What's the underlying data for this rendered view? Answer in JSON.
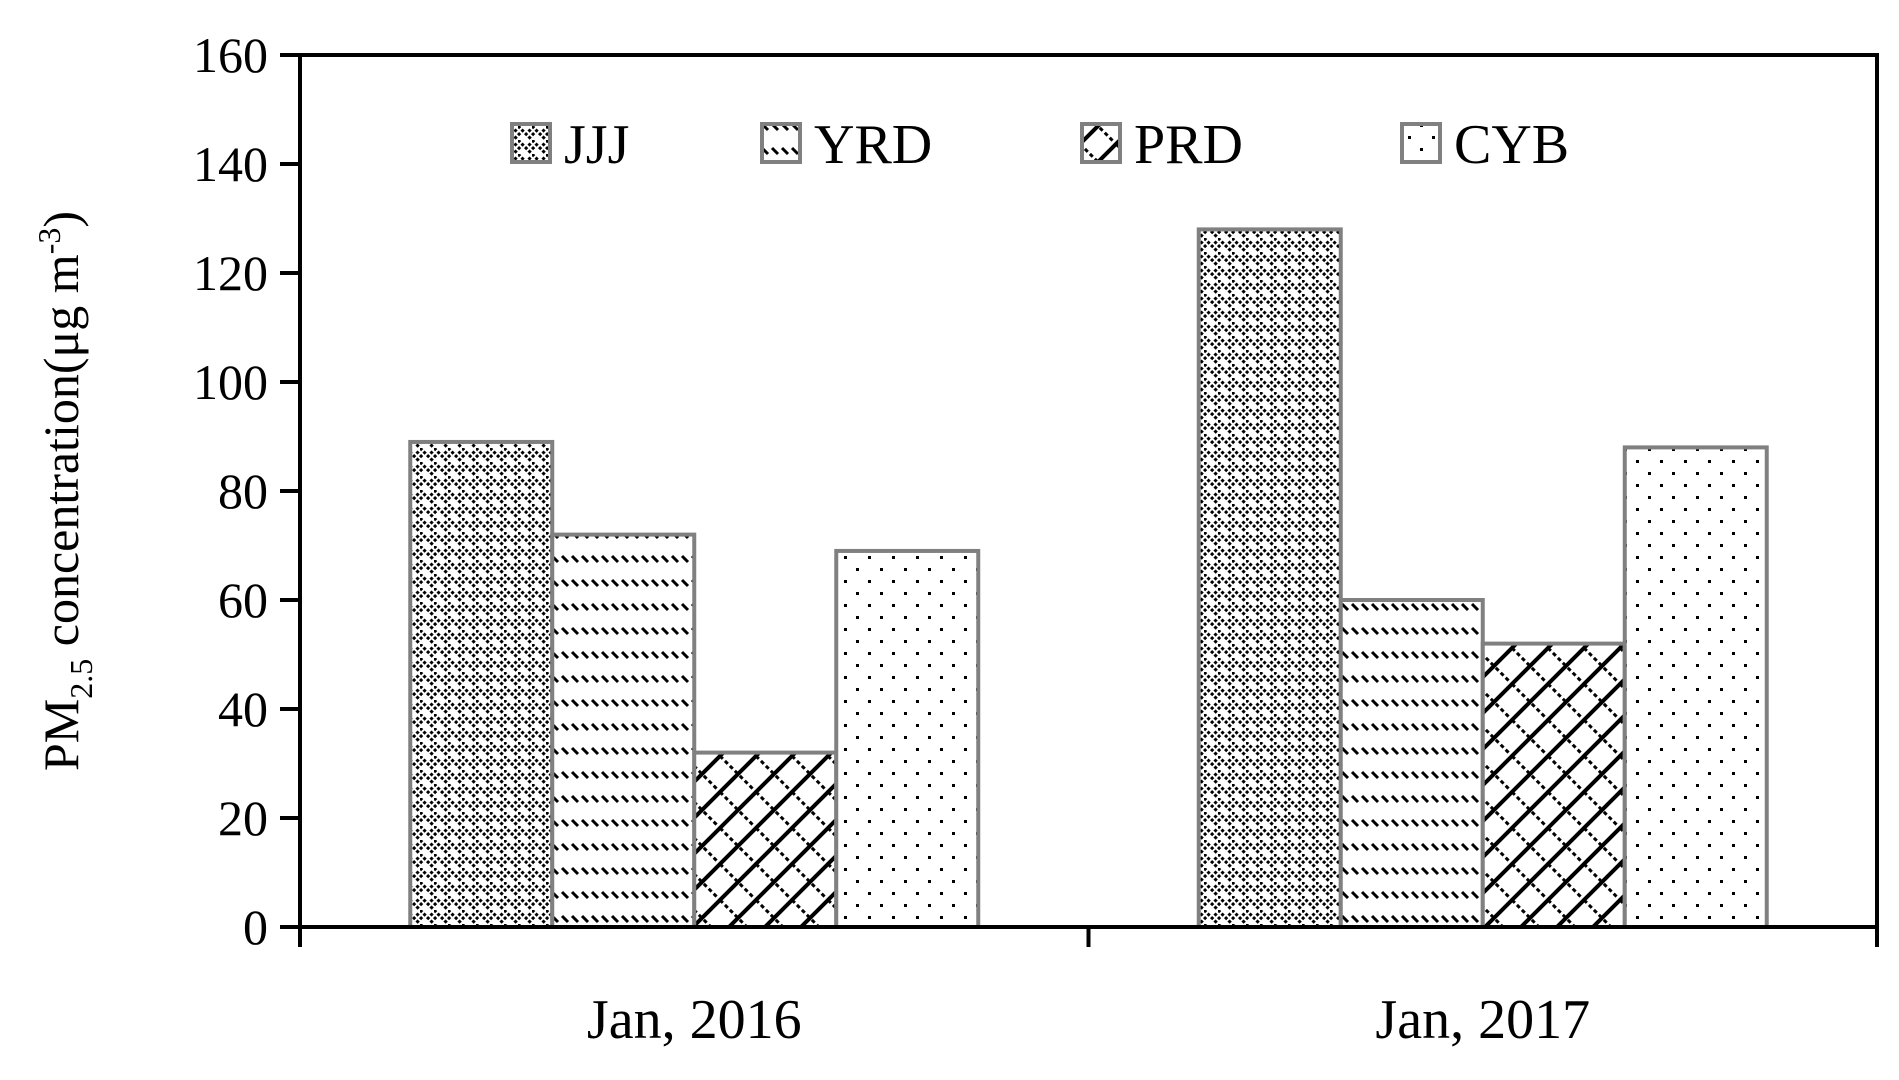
{
  "chart_data": {
    "type": "bar",
    "categories": [
      "Jan, 2016",
      "Jan, 2017"
    ],
    "series": [
      {
        "name": "JJJ",
        "values": [
          89,
          128
        ],
        "pattern": "jjj"
      },
      {
        "name": "YRD",
        "values": [
          72,
          60
        ],
        "pattern": "yrd"
      },
      {
        "name": "PRD",
        "values": [
          32,
          52
        ],
        "pattern": "prd"
      },
      {
        "name": "CYB",
        "values": [
          69,
          88
        ],
        "pattern": "cyb"
      }
    ],
    "ylabel": {
      "main": "PM",
      "sub": "2.5",
      "rest": " concentration(μg m",
      "sup": "-3",
      "close": ")"
    },
    "ylim": [
      0,
      160
    ],
    "yticks": [
      0,
      20,
      40,
      60,
      80,
      100,
      120,
      140,
      160
    ],
    "legend_position": "top",
    "grid": false,
    "colors": {
      "bar_border": "#808080",
      "axis": "#000000",
      "plot_border": "#000000"
    }
  }
}
